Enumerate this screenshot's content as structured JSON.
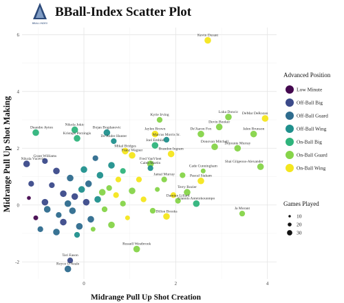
{
  "header": {
    "title": "BBall-Index Scatter Plot",
    "logo_text": "BBALL INDEX"
  },
  "chart_data": {
    "type": "scatter",
    "title": "BBall-Index Scatter Plot",
    "xlabel": "Midrange Pull Up Shot Creation",
    "ylabel": "Midrange Pull Up Shot Making",
    "xlim": [
      -1.35,
      4.2
    ],
    "ylim": [
      -2.6,
      6.25
    ],
    "xticks": [
      0,
      2,
      4
    ],
    "yticks": [
      -2,
      0,
      2,
      4,
      6
    ],
    "grid": true,
    "legend_position": "right",
    "colors": {
      "Low Minute": "#44084f",
      "Off-Ball Big": "#3b4a8a",
      "Off-Ball Guard": "#2e6c8e",
      "Off-Ball Wing": "#20908d",
      "On-Ball Big": "#2fb47c",
      "On-Ball Guard": "#86d449",
      "On-Ball Wing": "#f4e61e"
    },
    "color_legend": {
      "title": "Advanced Position",
      "items": [
        "Low Minute",
        "Off-Ball Big",
        "Off-Ball Guard",
        "Off-Ball Wing",
        "On-Ball Big",
        "On-Ball Guard",
        "On-Ball Wing"
      ]
    },
    "size_legend": {
      "title": "Games Played",
      "items": [
        "10",
        "20",
        "30"
      ]
    },
    "labeled_points": [
      {
        "name": "Kevin Durant",
        "x": 2.7,
        "y": 5.8,
        "position": "On-Ball Wing",
        "games": 30
      },
      {
        "name": "Luka Doncic",
        "x": 3.15,
        "y": 3.1,
        "position": "On-Ball Guard",
        "games": 30
      },
      {
        "name": "DeMar DeRozan",
        "x": 3.95,
        "y": 3.05,
        "position": "On-Ball Wing",
        "games": 30
      },
      {
        "name": "Kyrie Irving",
        "x": 1.65,
        "y": 3.0,
        "position": "On-Ball Guard",
        "games": 25
      },
      {
        "name": "Devin Booker",
        "x": 2.95,
        "y": 2.75,
        "position": "On-Ball Guard",
        "games": 30
      },
      {
        "name": "Jalen Brunson",
        "x": 3.7,
        "y": 2.5,
        "position": "On-Ball Guard",
        "games": 30
      },
      {
        "name": "Nikola Jokic",
        "x": -0.2,
        "y": 2.65,
        "position": "On-Ball Big",
        "games": 30
      },
      {
        "name": "Deandre Ayton",
        "x": -1.05,
        "y": 2.55,
        "position": "On-Ball Big",
        "games": 30
      },
      {
        "name": "Jaylen Brown",
        "x": 1.55,
        "y": 2.5,
        "position": "On-Ball Wing",
        "games": 30
      },
      {
        "name": "Bojan Bogdanovic",
        "x": 0.5,
        "y": 2.55,
        "position": "Off-Ball Wing",
        "games": 30
      },
      {
        "name": "Marcus Morris Sr.",
        "x": 1.8,
        "y": 2.3,
        "position": "Off-Ball Wing",
        "games": 25
      },
      {
        "name": "De'Aaron Fox",
        "x": 2.55,
        "y": 2.5,
        "position": "On-Ball Guard",
        "games": 30
      },
      {
        "name": "Kristaps Porzingis",
        "x": -0.15,
        "y": 2.35,
        "position": "On-Ball Big",
        "games": 30
      },
      {
        "name": "De'Andre Hunter",
        "x": 0.65,
        "y": 2.25,
        "position": "Off-Ball Wing",
        "games": 25
      },
      {
        "name": "Joel Embiid",
        "x": 1.55,
        "y": 2.1,
        "position": "On-Ball Big",
        "games": 30
      },
      {
        "name": "Donovan Mitchell",
        "x": 2.85,
        "y": 2.05,
        "position": "On-Ball Guard",
        "games": 30
      },
      {
        "name": "Dejounte Murray",
        "x": 3.35,
        "y": 2.0,
        "position": "On-Ball Guard",
        "games": 30
      },
      {
        "name": "Mikal Bridges",
        "x": 0.9,
        "y": 1.9,
        "position": "On-Ball Wing",
        "games": 30
      },
      {
        "name": "Franz Wagner",
        "x": 1.05,
        "y": 1.75,
        "position": "On-Ball Wing",
        "games": 30
      },
      {
        "name": "Brandon Ingram",
        "x": 1.9,
        "y": 1.8,
        "position": "On-Ball Wing",
        "games": 30
      },
      {
        "name": "Grant Williams",
        "x": -0.85,
        "y": 1.55,
        "position": "Off-Ball Big",
        "games": 25
      },
      {
        "name": "Nikola Vucevic",
        "x": -1.25,
        "y": 1.45,
        "position": "Off-Ball Big",
        "games": 30
      },
      {
        "name": "Fred VanVleet",
        "x": 1.45,
        "y": 1.45,
        "position": "On-Ball Guard",
        "games": 30
      },
      {
        "name": "Caleb Martin",
        "x": 1.45,
        "y": 1.3,
        "position": "Off-Ball Wing",
        "games": 25
      },
      {
        "name": "Cade Cunningham",
        "x": 2.6,
        "y": 1.2,
        "position": "On-Ball Guard",
        "games": 20
      },
      {
        "name": "Shai Gilgeous-Alexander",
        "x": 3.85,
        "y": 1.35,
        "position": "On-Ball Guard",
        "games": 30
      },
      {
        "name": "Jamal Murray",
        "x": 1.75,
        "y": 0.9,
        "position": "On-Ball Guard",
        "games": 25
      },
      {
        "name": "Pascal Siakam",
        "x": 2.55,
        "y": 0.85,
        "position": "On-Ball Wing",
        "games": 30
      },
      {
        "name": "Giannis Antetokounmpo",
        "x": 2.45,
        "y": 0.05,
        "position": "On-Ball Big",
        "games": 30
      },
      {
        "name": "Terry Rozier",
        "x": 2.25,
        "y": 0.45,
        "position": "On-Ball Guard",
        "games": 30
      },
      {
        "name": "Ja Morant",
        "x": 3.45,
        "y": -0.3,
        "position": "On-Ball Guard",
        "games": 25
      },
      {
        "name": "Damian Lillard",
        "x": 2.05,
        "y": 0.15,
        "position": "On-Ball Guard",
        "games": 25
      },
      {
        "name": "Dillon Brooks",
        "x": 1.8,
        "y": -0.4,
        "position": "On-Ball Wing",
        "games": 30
      },
      {
        "name": "Russell Westbrook",
        "x": 1.15,
        "y": -1.55,
        "position": "On-Ball Guard",
        "games": 30
      },
      {
        "name": "Tari Eason",
        "x": -0.3,
        "y": -1.95,
        "position": "Off-Ball Big",
        "games": 25
      },
      {
        "name": "Royce O'Neale",
        "x": -0.35,
        "y": -2.25,
        "position": "Off-Ball Guard",
        "games": 30
      }
    ],
    "other_points": [
      {
        "x": 0.05,
        "y": 0.1,
        "position": "Off-Ball Big",
        "games": 30
      },
      {
        "x": -0.45,
        "y": 0.4,
        "position": "Off-Ball Big",
        "games": 30
      },
      {
        "x": -0.25,
        "y": -0.2,
        "position": "Off-Ball Guard",
        "games": 30
      },
      {
        "x": 0.15,
        "y": -0.5,
        "position": "Off-Ball Guard",
        "games": 30
      },
      {
        "x": -0.55,
        "y": -0.35,
        "position": "Off-Ball Guard",
        "games": 25
      },
      {
        "x": -0.05,
        "y": 0.55,
        "position": "Off-Ball Wing",
        "games": 30
      },
      {
        "x": 0.3,
        "y": 0.2,
        "position": "Off-Ball Wing",
        "games": 30
      },
      {
        "x": -0.35,
        "y": 0.05,
        "position": "Off-Ball Guard",
        "games": 30
      },
      {
        "x": 0.45,
        "y": -0.15,
        "position": "On-Ball Guard",
        "games": 25
      },
      {
        "x": -0.7,
        "y": 0.7,
        "position": "Off-Ball Big",
        "games": 25
      },
      {
        "x": -0.85,
        "y": 0.1,
        "position": "Off-Ball Big",
        "games": 30
      },
      {
        "x": -1.05,
        "y": -0.45,
        "position": "Low Minute",
        "games": 20
      },
      {
        "x": -1.2,
        "y": 0.25,
        "position": "Low Minute",
        "games": 15
      },
      {
        "x": -0.95,
        "y": -0.85,
        "position": "Off-Ball Guard",
        "games": 25
      },
      {
        "x": -0.6,
        "y": -0.95,
        "position": "Off-Ball Guard",
        "games": 30
      },
      {
        "x": -0.15,
        "y": -1.05,
        "position": "Off-Ball Wing",
        "games": 25
      },
      {
        "x": 0.2,
        "y": -0.85,
        "position": "On-Ball Guard",
        "games": 20
      },
      {
        "x": 0.55,
        "y": 0.6,
        "position": "On-Ball Guard",
        "games": 25
      },
      {
        "x": 0.7,
        "y": 0.35,
        "position": "On-Ball Wing",
        "games": 25
      },
      {
        "x": 0.85,
        "y": 0.05,
        "position": "On-Ball Guard",
        "games": 25
      },
      {
        "x": 1.05,
        "y": 0.5,
        "position": "On-Ball Guard",
        "games": 30
      },
      {
        "x": 1.2,
        "y": 0.9,
        "position": "On-Ball Wing",
        "games": 25
      },
      {
        "x": 0.95,
        "y": -0.45,
        "position": "On-Ball Wing",
        "games": 20
      },
      {
        "x": 0.6,
        "y": -0.7,
        "position": "On-Ball Guard",
        "games": 30
      },
      {
        "x": 0.35,
        "y": 1.05,
        "position": "Off-Ball Wing",
        "games": 30
      },
      {
        "x": 0.0,
        "y": 1.25,
        "position": "Off-Ball Wing",
        "games": 30
      },
      {
        "x": -0.3,
        "y": 0.95,
        "position": "Off-Ball Guard",
        "games": 30
      },
      {
        "x": -0.6,
        "y": 1.2,
        "position": "Off-Ball Big",
        "games": 30
      },
      {
        "x": 0.25,
        "y": 1.65,
        "position": "Off-Ball Guard",
        "games": 25
      },
      {
        "x": 0.6,
        "y": 1.4,
        "position": "Off-Ball Wing",
        "games": 30
      },
      {
        "x": 0.85,
        "y": 1.2,
        "position": "On-Ball Big",
        "games": 25
      },
      {
        "x": 1.3,
        "y": 0.2,
        "position": "On-Ball Wing",
        "games": 25
      },
      {
        "x": 1.5,
        "y": -0.2,
        "position": "On-Ball Guard",
        "games": 25
      },
      {
        "x": 1.6,
        "y": 0.55,
        "position": "On-Ball Guard",
        "games": 20
      },
      {
        "x": 1.95,
        "y": 0.35,
        "position": "On-Ball Wing",
        "games": 25
      },
      {
        "x": 2.15,
        "y": 1.05,
        "position": "On-Ball Guard",
        "games": 25
      },
      {
        "x": -0.8,
        "y": -0.15,
        "position": "Off-Ball Guard",
        "games": 30
      },
      {
        "x": -0.45,
        "y": -0.6,
        "position": "Off-Ball Big",
        "games": 30
      },
      {
        "x": -0.2,
        "y": 0.3,
        "position": "Off-Ball Big",
        "games": 30
      },
      {
        "x": 0.1,
        "y": 0.75,
        "position": "Off-Ball Guard",
        "games": 30
      },
      {
        "x": 0.4,
        "y": 0.45,
        "position": "On-Ball Guard",
        "games": 30
      },
      {
        "x": -1.15,
        "y": 0.75,
        "position": "Off-Ball Big",
        "games": 25
      },
      {
        "x": -0.1,
        "y": -0.75,
        "position": "Off-Ball Guard",
        "games": 30
      },
      {
        "x": 0.75,
        "y": 0.9,
        "position": "On-Ball Wing",
        "games": 25
      }
    ]
  }
}
